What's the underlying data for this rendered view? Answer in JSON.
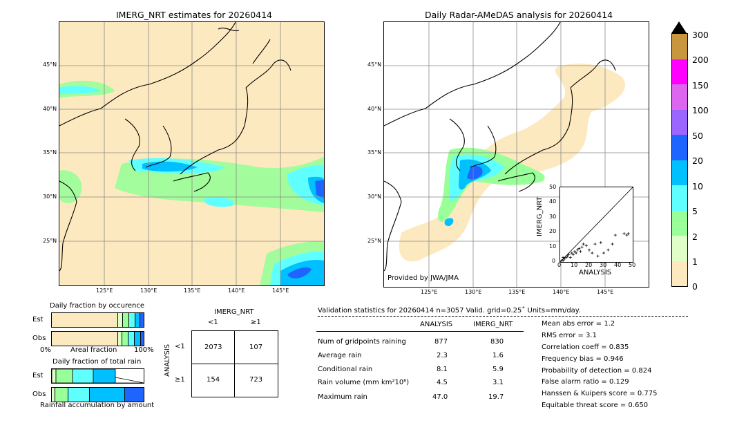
{
  "left_map": {
    "title": "IMERG_NRT estimates for 20260414",
    "lat_labels": [
      "45°N",
      "40°N",
      "35°N",
      "30°N",
      "25°N"
    ],
    "lon_labels": [
      "125°E",
      "130°E",
      "135°E",
      "140°E",
      "145°E"
    ]
  },
  "right_map": {
    "title": "Daily Radar-AMeDAS analysis for 20260414",
    "lat_labels": [
      "45°N",
      "40°N",
      "35°N",
      "30°N",
      "25°N"
    ],
    "lon_labels": [
      "125°E",
      "130°E",
      "135°E",
      "140°E",
      "145°E"
    ],
    "credit": "Provided by JWA/JMA"
  },
  "colorbar": {
    "labels": [
      "300",
      "200",
      "150",
      "100",
      "50",
      "20",
      "10",
      "5",
      "2",
      "1",
      "0"
    ],
    "colors": [
      "#c8963c",
      "#ff00ff",
      "#dd66ee",
      "#9a66ff",
      "#1e64ff",
      "#00c0ff",
      "#60ffff",
      "#99ff99",
      "#e0ffc8",
      "#fde9bf"
    ]
  },
  "scatter": {
    "ylabel": "IMERG_NRT",
    "xlabel": "ANALYSIS",
    "ticks": [
      "0",
      "10",
      "20",
      "30",
      "40",
      "50"
    ]
  },
  "fraction_occurrence": {
    "title": "Daily fraction by occurence",
    "rows": [
      "Est",
      "Obs"
    ],
    "axis_left": "0%",
    "axis_mid": "Areal fraction",
    "axis_right": "100%"
  },
  "fraction_total": {
    "title": "Daily fraction of total rain",
    "rows": [
      "Est",
      "Obs"
    ],
    "axis_label": "Rainfall accumulation by amount"
  },
  "contingency": {
    "col_title": "IMERG_NRT",
    "col_labels": [
      "<1",
      "≥1"
    ],
    "row_title": "ANALYSIS",
    "row_labels": [
      "<1",
      "≥1"
    ],
    "cells": [
      [
        "2073",
        "107"
      ],
      [
        "154",
        "723"
      ]
    ]
  },
  "validation": {
    "header": "Validation statistics for 20260414  n=3057 Valid. grid=0.25˚ Units=mm/day.",
    "col_analysis": "ANALYSIS",
    "col_imerg": "IMERG_NRT",
    "rows": [
      {
        "label": "Num of gridpoints raining",
        "analysis": "877",
        "imerg": "830"
      },
      {
        "label": "Average rain",
        "analysis": "2.3",
        "imerg": "1.6"
      },
      {
        "label": "Conditional rain",
        "analysis": "8.1",
        "imerg": "5.9"
      },
      {
        "label": "Rain volume (mm km²10⁶)",
        "analysis": "4.5",
        "imerg": "3.1"
      },
      {
        "label": "Maximum rain",
        "analysis": "47.0",
        "imerg": "19.7"
      }
    ],
    "scores": [
      "Mean abs error =    1.2",
      "RMS error =    3.1",
      "Correlation coeff =  0.835",
      "Frequency bias =  0.946",
      "Probability of detection =  0.824",
      "False alarm ratio =  0.129",
      "Hanssen & Kuipers score =  0.775",
      "Equitable threat score =  0.650"
    ]
  },
  "chart_data": {
    "type": "scatter",
    "xlabel": "ANALYSIS",
    "ylabel": "IMERG_NRT",
    "xlim": [
      0,
      50
    ],
    "ylim": [
      0,
      50
    ],
    "points": [
      [
        1,
        1
      ],
      [
        2,
        1
      ],
      [
        2,
        3
      ],
      [
        3,
        2
      ],
      [
        4,
        3
      ],
      [
        5,
        4
      ],
      [
        6,
        5
      ],
      [
        7,
        3
      ],
      [
        8,
        6
      ],
      [
        9,
        5
      ],
      [
        10,
        7
      ],
      [
        11,
        6
      ],
      [
        12,
        8
      ],
      [
        13,
        9
      ],
      [
        14,
        7
      ],
      [
        15,
        10
      ],
      [
        16,
        12
      ],
      [
        18,
        11
      ],
      [
        20,
        8
      ],
      [
        22,
        6
      ],
      [
        24,
        12
      ],
      [
        26,
        4
      ],
      [
        28,
        13
      ],
      [
        30,
        6
      ],
      [
        33,
        8
      ],
      [
        36,
        12
      ],
      [
        38,
        18
      ],
      [
        44,
        19
      ],
      [
        46,
        18
      ],
      [
        47,
        19
      ]
    ]
  }
}
